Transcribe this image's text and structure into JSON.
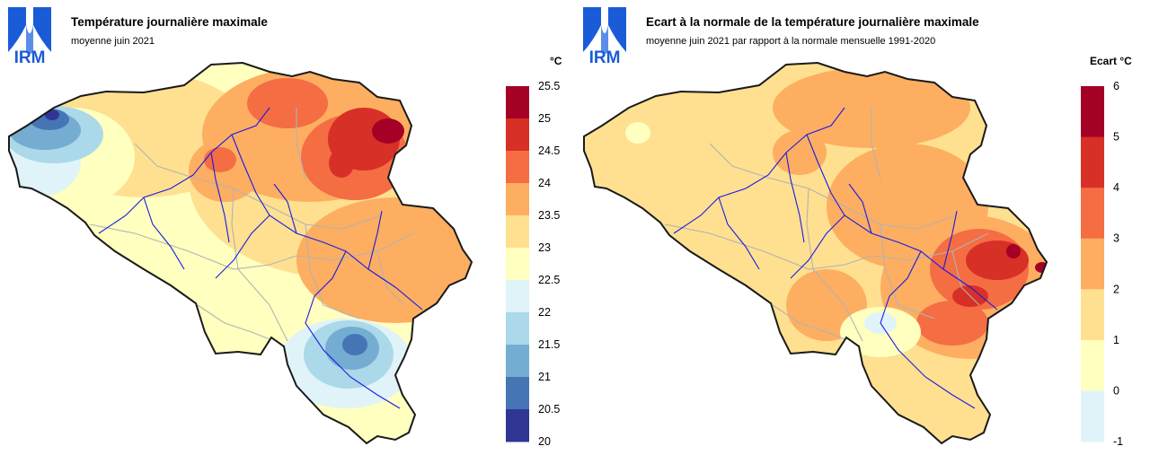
{
  "logo": {
    "text": "IRM",
    "color": "#1a5bd8"
  },
  "panels": [
    {
      "id": "left",
      "title": "Température journalière maximale",
      "subtitle": "moyenne juin 2021",
      "unit": "°C",
      "legend": {
        "labels": [
          "25.5",
          "25",
          "24.5",
          "24",
          "23.5",
          "23",
          "22.5",
          "22",
          "21.5",
          "21",
          "20.5",
          "20"
        ],
        "colors": [
          "#a50026",
          "#d73027",
          "#f46d43",
          "#fdae61",
          "#fee090",
          "#ffffbf",
          "#e0f3f8",
          "#abd9e9",
          "#74add1",
          "#4575b4",
          "#313695"
        ]
      }
    },
    {
      "id": "right",
      "title": "Ecart à la normale de la température journalière maximale",
      "subtitle": "moyenne juin 2021 par rapport à la normale mensuelle 1991-2020",
      "unit": "Ecart °C",
      "legend": {
        "labels": [
          "6",
          "5",
          "4",
          "3",
          "2",
          "1",
          "0",
          "-1"
        ],
        "colors": [
          "#a50026",
          "#d73027",
          "#f46d43",
          "#fdae61",
          "#fee090",
          "#ffffbf",
          "#e0f3f8"
        ]
      }
    }
  ]
}
